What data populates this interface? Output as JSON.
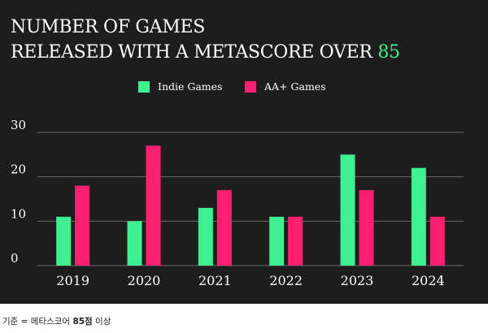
{
  "title": {
    "line1": "NUMBER OF GAMES",
    "line2": "RELEASED WITH A METASCORE OVER",
    "accent": "85"
  },
  "footnote": {
    "prefix": "기준 = 메타스코어 ",
    "bold": "85점",
    "suffix": " 이상"
  },
  "colors": {
    "background": "#1d1d1d",
    "indie": "#3ef08f",
    "aa": "#ff1f70",
    "text": "#ffffff",
    "grid": "#8a8a8a"
  },
  "chart_data": {
    "type": "bar",
    "title": "NUMBER OF GAMES RELEASED WITH A METASCORE OVER 85",
    "categories": [
      "2019",
      "2020",
      "2021",
      "2022",
      "2023",
      "2024"
    ],
    "series": [
      {
        "name": "Indie Games",
        "color": "#3ef08f",
        "values": [
          11,
          10,
          13,
          11,
          25,
          22
        ]
      },
      {
        "name": "AA+ Games",
        "color": "#ff1f70",
        "values": [
          18,
          27,
          17,
          11,
          17,
          11
        ]
      }
    ],
    "yticks": [
      0,
      10,
      20,
      30
    ],
    "ylim": [
      0,
      30
    ],
    "grid": true,
    "legend": "top-center",
    "xlabel": "",
    "ylabel": ""
  }
}
